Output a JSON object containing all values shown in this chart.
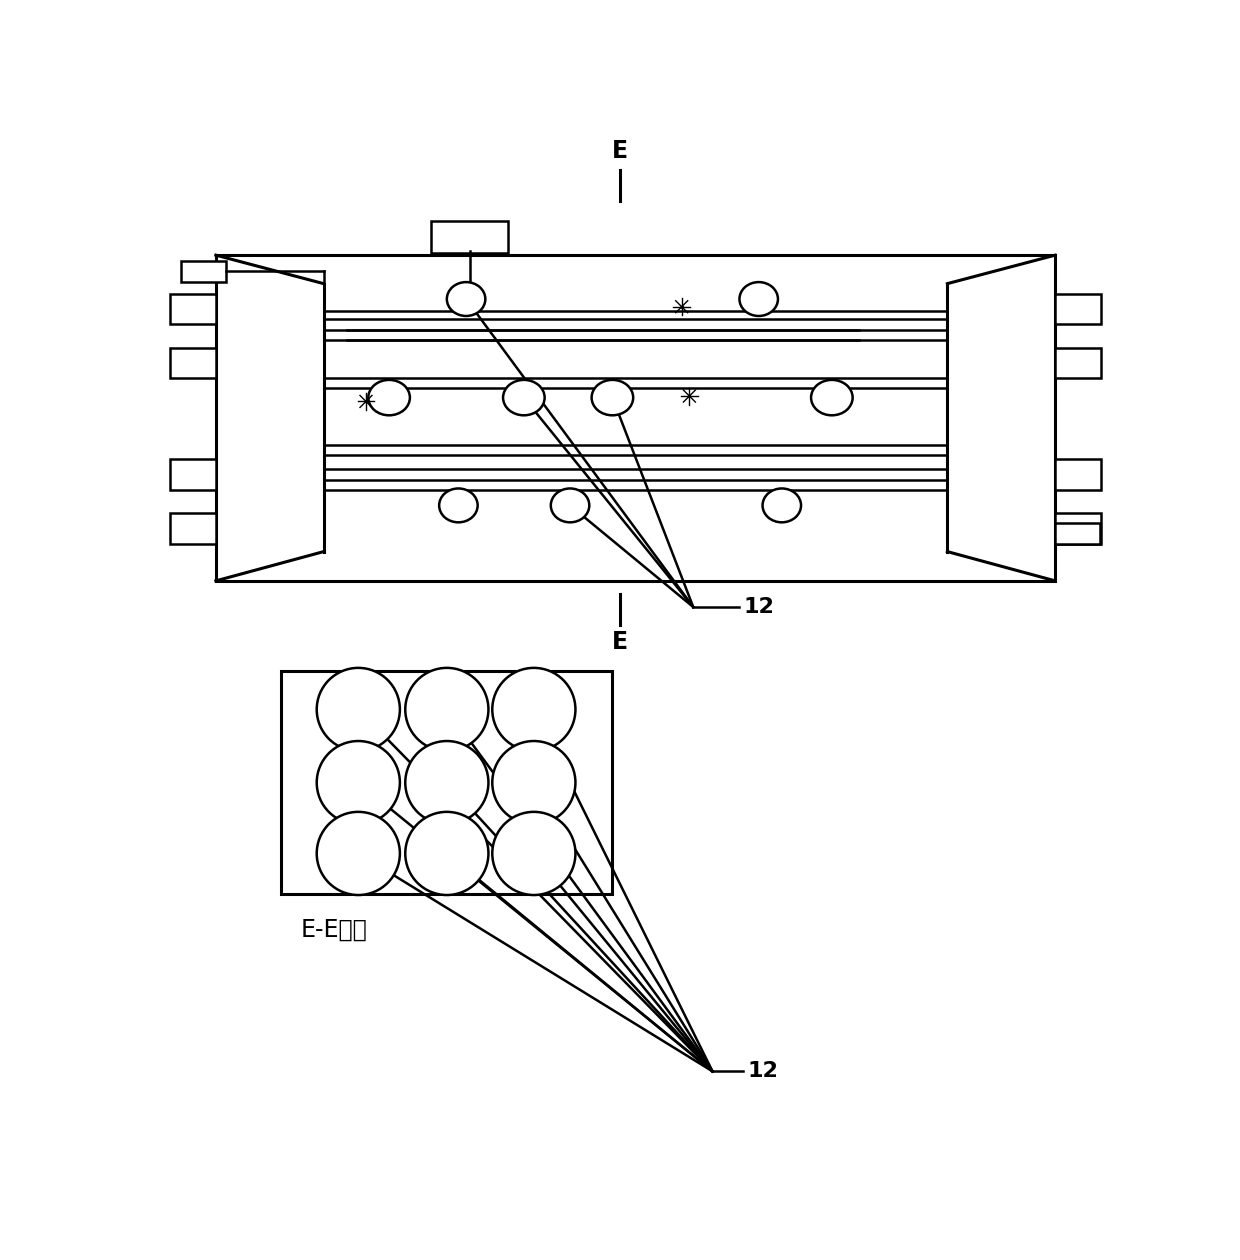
{
  "bg_color": "#ffffff",
  "line_color": "#000000",
  "lw": 1.8,
  "tlw": 2.2,
  "fig_width": 12.4,
  "fig_height": 12.6,
  "label_12": "12",
  "label_E": "E",
  "label_EE": "E-E视图",
  "fs": 16
}
